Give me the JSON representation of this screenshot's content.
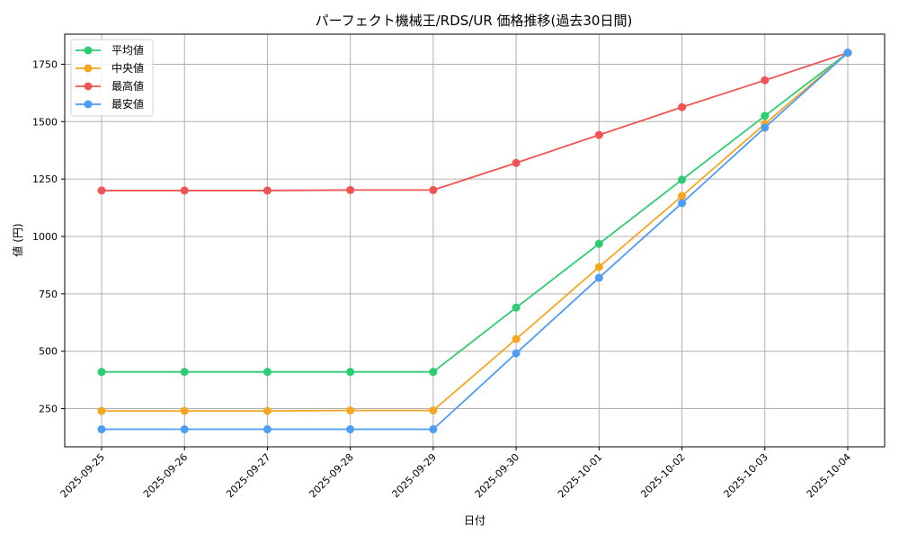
{
  "chart_data": {
    "type": "line",
    "title": "パーフェクト機械王/RDS/UR 価格推移(過去30日間)",
    "xlabel": "日付",
    "ylabel": "値 (円)",
    "categories": [
      "2025-09-25",
      "2025-09-26",
      "2025-09-27",
      "2025-09-28",
      "2025-09-29",
      "2025-09-30",
      "2025-10-01",
      "2025-10-02",
      "2025-10-03",
      "2025-10-04"
    ],
    "yticks": [
      250,
      500,
      750,
      1000,
      1250,
      1500,
      1750
    ],
    "ylim": [
      75,
      1875
    ],
    "grid": true,
    "legend_position": "upper left",
    "series": [
      {
        "name": "平均値",
        "color": "#2ecc71",
        "values": [
          410,
          410,
          410,
          410,
          410,
          690,
          968,
          1247,
          1525,
          1800
        ]
      },
      {
        "name": "中央値",
        "color": "#f5a623",
        "values": [
          240,
          240,
          240,
          242,
          242,
          553,
          867,
          1176,
          1490,
          1800
        ]
      },
      {
        "name": "最高値",
        "color": "#f05454",
        "values": [
          1200,
          1200,
          1200,
          1202,
          1202,
          1320,
          1442,
          1563,
          1680,
          1800
        ]
      },
      {
        "name": "最安値",
        "color": "#4d9cf5",
        "values": [
          160,
          160,
          160,
          160,
          160,
          491,
          820,
          1145,
          1474,
          1800
        ]
      }
    ]
  }
}
